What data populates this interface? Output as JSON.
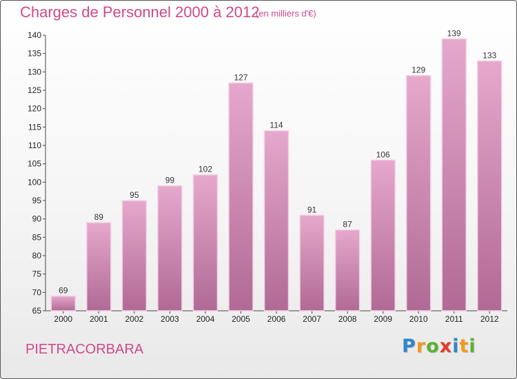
{
  "header": {
    "title": "Charges de Personnel 2000 à 2012",
    "subtitle": "(en milliers d'€)"
  },
  "footer": {
    "commune": "PIETRACORBARA",
    "logo_letters": [
      {
        "char": "P",
        "color": "#2f86c9"
      },
      {
        "char": "r",
        "color": "#f39a1e"
      },
      {
        "char": "o",
        "color": "#5bb135"
      },
      {
        "char": "x",
        "color": "#e5392f"
      },
      {
        "char": "i",
        "color": "#2f86c9"
      },
      {
        "char": "t",
        "color": "#f39a1e"
      },
      {
        "char": "i",
        "color": "#5bb135"
      }
    ]
  },
  "colors": {
    "bar_top": "#e6a8cc",
    "bar_bottom": "#b06a95",
    "bar_edge": "#f3d2e4",
    "title": "#d0488b"
  },
  "chart_data": {
    "type": "bar",
    "title": "Charges de Personnel 2000 à 2012",
    "subtitle": "(en milliers d'€)",
    "categories": [
      "2000",
      "2001",
      "2002",
      "2003",
      "2004",
      "2005",
      "2006",
      "2007",
      "2008",
      "2009",
      "2010",
      "2011",
      "2012"
    ],
    "values": [
      69,
      89,
      95,
      99,
      102,
      127,
      114,
      91,
      87,
      106,
      129,
      139,
      133
    ],
    "yticks": [
      65,
      70,
      75,
      80,
      85,
      90,
      95,
      100,
      105,
      110,
      115,
      120,
      125,
      130,
      135,
      140
    ],
    "ylim": [
      65,
      140
    ],
    "xlabel": "",
    "ylabel": "",
    "grid": false,
    "legend": "none"
  }
}
